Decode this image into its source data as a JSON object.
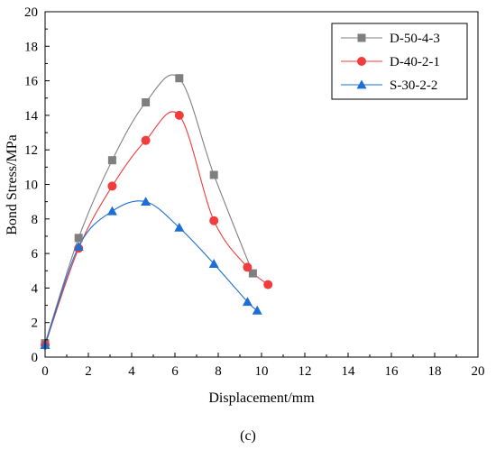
{
  "chart_data": {
    "type": "line",
    "xlabel": "Displacement/mm",
    "ylabel": "Bond Stress/MPa",
    "xlim": [
      0,
      20
    ],
    "ylim": [
      0,
      20
    ],
    "xticks": [
      0,
      2,
      4,
      6,
      8,
      10,
      12,
      14,
      16,
      18,
      20
    ],
    "yticks": [
      0,
      2,
      4,
      6,
      8,
      10,
      12,
      14,
      16,
      18,
      20
    ],
    "grid": false,
    "legend_position": "top-right",
    "series": [
      {
        "name": "D-50-4-3",
        "color": "#7f7f7f",
        "marker": "square",
        "x": [
          0,
          1.55,
          3.1,
          4.65,
          6.2,
          7.8,
          9.6
        ],
        "y": [
          0.8,
          6.9,
          11.4,
          14.75,
          16.15,
          10.55,
          4.85
        ]
      },
      {
        "name": "D-40-2-1",
        "color": "#f03c3c",
        "marker": "circle",
        "x": [
          0,
          1.55,
          3.1,
          4.65,
          6.2,
          7.8,
          9.35,
          10.3
        ],
        "y": [
          0.7,
          6.3,
          9.9,
          12.55,
          14.0,
          7.9,
          5.2,
          4.2
        ]
      },
      {
        "name": "S-30-2-2",
        "color": "#1c6fd4",
        "marker": "triangle",
        "x": [
          0,
          1.55,
          3.1,
          4.65,
          6.2,
          7.8,
          9.35,
          9.8
        ],
        "y": [
          0.7,
          6.4,
          8.45,
          9.0,
          7.5,
          5.4,
          3.2,
          2.7
        ]
      }
    ]
  },
  "caption": "(c)"
}
